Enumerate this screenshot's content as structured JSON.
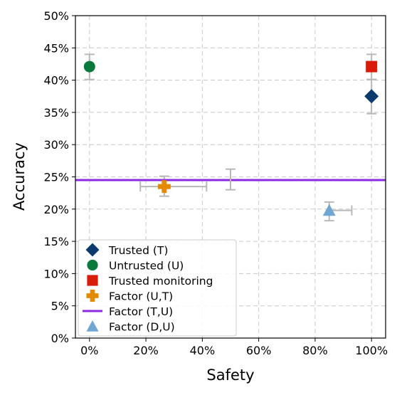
{
  "chart_data": {
    "type": "scatter",
    "title": "",
    "xlabel": "Safety",
    "ylabel": "Accuracy",
    "xlim": [
      -0.05,
      1.05
    ],
    "ylim": [
      0,
      0.5
    ],
    "x_ticks": [
      {
        "value": 0.0,
        "label": "0%"
      },
      {
        "value": 0.2,
        "label": "20%"
      },
      {
        "value": 0.4,
        "label": "40%"
      },
      {
        "value": 0.6,
        "label": "60%"
      },
      {
        "value": 0.8,
        "label": "80%"
      },
      {
        "value": 1.0,
        "label": "100%"
      }
    ],
    "y_ticks": [
      {
        "value": 0.0,
        "label": "0%"
      },
      {
        "value": 0.05,
        "label": "5%"
      },
      {
        "value": 0.1,
        "label": "10%"
      },
      {
        "value": 0.15,
        "label": "15%"
      },
      {
        "value": 0.2,
        "label": "20%"
      },
      {
        "value": 0.25,
        "label": "25%"
      },
      {
        "value": 0.3,
        "label": "30%"
      },
      {
        "value": 0.35,
        "label": "35%"
      },
      {
        "value": 0.4,
        "label": "40%"
      },
      {
        "value": 0.45,
        "label": "45%"
      },
      {
        "value": 0.5,
        "label": "50%"
      }
    ],
    "grid": true,
    "legend_position": "lower-left",
    "series": [
      {
        "name": "Trusted (T)",
        "marker": "diamond",
        "color": "#0b3a6e",
        "points": [
          {
            "x": 1.0,
            "y": 0.375,
            "y_err": [
              0.348,
              0.401
            ]
          }
        ]
      },
      {
        "name": "Untrusted (U)",
        "marker": "circle",
        "color": "#0a7a3c",
        "points": [
          {
            "x": 0.0,
            "y": 0.421,
            "y_err": [
              0.401,
              0.44
            ]
          }
        ]
      },
      {
        "name": "Trusted monitoring",
        "marker": "square",
        "color": "#d91c0a",
        "points": [
          {
            "x": 1.0,
            "y": 0.421,
            "y_err": [
              0.401,
              0.44
            ]
          }
        ]
      },
      {
        "name": "Factor (U,T)",
        "marker": "plus",
        "color": "#e38a00",
        "points": [
          {
            "x": 0.265,
            "y": 0.235,
            "x_err": [
              0.18,
              0.415
            ],
            "y_err": [
              0.22,
              0.251
            ]
          }
        ]
      },
      {
        "name": "Factor (T,U)",
        "marker": "hline",
        "color": "#8a2be2",
        "points": [
          {
            "y": 0.245
          }
        ],
        "extra_error_bar": {
          "x": 0.5,
          "y_err": [
            0.23,
            0.262
          ]
        }
      },
      {
        "name": "Factor (D,U)",
        "marker": "triangle",
        "color": "#6fa7d4",
        "points": [
          {
            "x": 0.85,
            "y": 0.198,
            "x_err": [
              0.85,
              0.93
            ],
            "y_err": [
              0.182,
              0.211
            ]
          }
        ]
      }
    ]
  }
}
